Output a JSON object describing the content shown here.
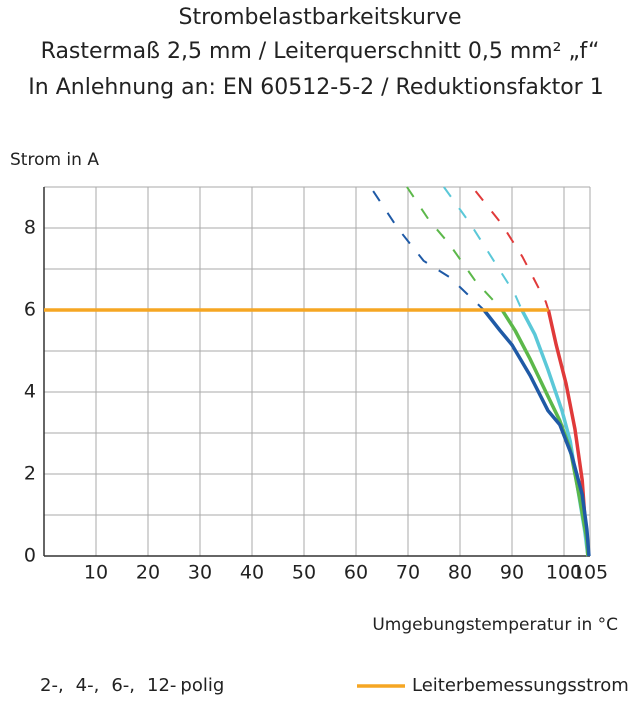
{
  "chart_data": {
    "type": "line",
    "title": "Strombelastbarkeitskurve",
    "subtitle": "Rastermaß 2,5 mm / Leiterquerschnitt 0,5 mm² „f“",
    "subtitle2": "In Anlehnung an: EN 60512-5-2 / Reduktionsfaktor 1",
    "ylabel": "Strom in A",
    "xlabel": "Umgebungstemperatur in °C",
    "xlim": [
      0,
      105
    ],
    "ylim": [
      0,
      9
    ],
    "xticks": [
      10,
      20,
      30,
      40,
      50,
      60,
      70,
      80,
      90,
      100,
      105
    ],
    "yticks": [
      0,
      2,
      4,
      6,
      8
    ],
    "ygrid": [
      1,
      2,
      3,
      4,
      5,
      6,
      7,
      8,
      9
    ],
    "grid": true,
    "legend_suffix": "polig",
    "series": [
      {
        "name": "2-,",
        "color": "#e03a3a",
        "x": [
          97,
          98.5,
          100.4,
          102.1,
          103.5,
          104.2,
          104.6
        ],
        "values": [
          6,
          5.15,
          4.2,
          3.1,
          1.85,
          0.6,
          0
        ],
        "dashed_x": [
          83,
          88,
          92,
          96.5,
          97
        ],
        "dashed_values": [
          8.9,
          8.1,
          7.3,
          6.2,
          6
        ]
      },
      {
        "name": "4-,",
        "color": "#5bc8d8",
        "x": [
          91.9,
          94.4,
          96.9,
          99.6,
          101.2,
          102.7,
          104,
          104.6
        ],
        "values": [
          6,
          5.4,
          4.55,
          3.55,
          2.8,
          1.6,
          0.6,
          0
        ],
        "dashed_x": [
          76.9,
          82,
          86,
          90.5,
          91.9
        ],
        "dashed_values": [
          9,
          8.1,
          7.3,
          6.4,
          6
        ]
      },
      {
        "name": "6-,",
        "color": "#5cb84a",
        "x": [
          88.1,
          90.6,
          93.5,
          96.9,
          99.2,
          101.2,
          103.1,
          104.4,
          104.6
        ],
        "values": [
          6,
          5.5,
          4.8,
          3.9,
          3.3,
          2.6,
          1.35,
          0.4,
          0
        ],
        "dashed_x": [
          69.8,
          74,
          78,
          83,
          88.1
        ],
        "dashed_values": [
          9,
          8.2,
          7.6,
          6.7,
          6
        ]
      },
      {
        "name": "12-",
        "color": "#1f5aa6",
        "x": [
          84.6,
          87.7,
          90,
          93.5,
          96.9,
          99.2,
          101.5,
          103.5,
          104.4,
          104.8
        ],
        "values": [
          6,
          5.5,
          5.15,
          4.4,
          3.55,
          3.2,
          2.45,
          1.5,
          0.65,
          0
        ],
        "dashed_x": [
          63.3,
          68,
          73,
          78,
          81.3,
          84.6
        ],
        "dashed_values": [
          8.9,
          8,
          7.2,
          6.8,
          6.4,
          6
        ]
      },
      {
        "name": "Leiterbemessungsstrom",
        "color": "#f5a623",
        "x": [
          0,
          97
        ],
        "values": [
          6,
          6
        ]
      }
    ]
  }
}
